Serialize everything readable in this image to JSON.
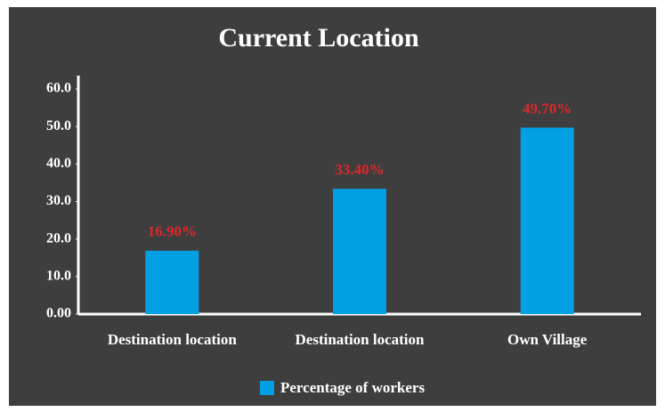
{
  "chart_data": {
    "type": "bar",
    "title": "Current Location",
    "categories": [
      "Destination location",
      "Destination location",
      "Own Village"
    ],
    "series": [
      {
        "name": "Percentage of workers",
        "color": "#00a0e3",
        "values": [
          16.9,
          33.4,
          49.7
        ],
        "value_labels": [
          "16.90%",
          "33.40%",
          "49.70%"
        ]
      }
    ],
    "ylim": [
      0,
      60
    ],
    "yticks": [
      {
        "value": 0,
        "label": "0.00"
      },
      {
        "value": 10,
        "label": "10.0"
      },
      {
        "value": 20,
        "label": "20.0"
      },
      {
        "value": 30,
        "label": "30.0"
      },
      {
        "value": 40,
        "label": "40.0"
      },
      {
        "value": 50,
        "label": "50.0"
      },
      {
        "value": 60,
        "label": "60.0"
      }
    ],
    "grid": false,
    "legend": "bottom",
    "value_label_color": "#e0262a"
  }
}
